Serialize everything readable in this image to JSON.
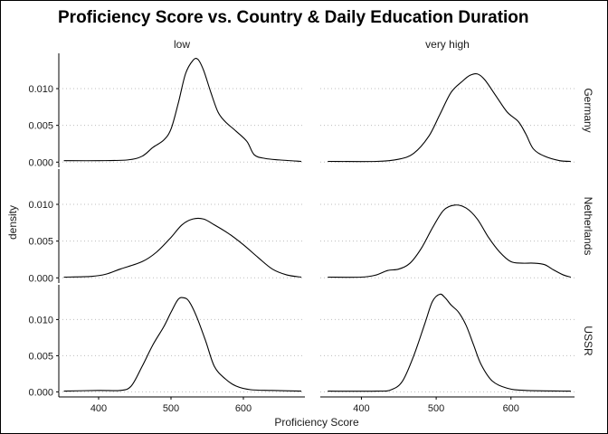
{
  "chart_data": {
    "type": "line",
    "title": "Proficiency Score vs. Country & Daily Education Duration",
    "xlabel": "Proficiency Score",
    "ylabel": "density",
    "xlim": [
      345,
      685
    ],
    "ylim": [
      -0.0007,
      0.0148
    ],
    "x_ticks": [
      400,
      500,
      600
    ],
    "y_ticks": [
      0.0,
      0.005,
      0.01
    ],
    "y_tick_labels": [
      "0.000",
      "0.005",
      "0.010"
    ],
    "grid": "horizontal dotted",
    "col_facets": [
      "low",
      "very high"
    ],
    "row_facets": [
      "Germany",
      "Netherlands",
      "USSR"
    ],
    "panels": [
      {
        "row": "Germany",
        "col": "low",
        "points": [
          [
            352,
            0.0002
          ],
          [
            400,
            0.0002
          ],
          [
            440,
            0.0003
          ],
          [
            460,
            0.0008
          ],
          [
            475,
            0.002
          ],
          [
            490,
            0.003
          ],
          [
            500,
            0.0045
          ],
          [
            510,
            0.008
          ],
          [
            520,
            0.012
          ],
          [
            530,
            0.0138
          ],
          [
            537,
            0.014
          ],
          [
            545,
            0.0125
          ],
          [
            555,
            0.0095
          ],
          [
            565,
            0.0068
          ],
          [
            575,
            0.0055
          ],
          [
            590,
            0.0042
          ],
          [
            605,
            0.0028
          ],
          [
            615,
            0.001
          ],
          [
            630,
            0.0005
          ],
          [
            650,
            0.0003
          ],
          [
            680,
            0.0001
          ]
        ]
      },
      {
        "row": "Germany",
        "col": "very high",
        "points": [
          [
            355,
            0.0001
          ],
          [
            420,
            0.0001
          ],
          [
            450,
            0.0004
          ],
          [
            470,
            0.0012
          ],
          [
            490,
            0.0035
          ],
          [
            505,
            0.0065
          ],
          [
            520,
            0.0095
          ],
          [
            535,
            0.011
          ],
          [
            545,
            0.0118
          ],
          [
            555,
            0.012
          ],
          [
            565,
            0.0112
          ],
          [
            580,
            0.009
          ],
          [
            595,
            0.0068
          ],
          [
            610,
            0.0055
          ],
          [
            620,
            0.0038
          ],
          [
            630,
            0.0018
          ],
          [
            645,
            0.0008
          ],
          [
            665,
            0.0002
          ],
          [
            680,
            0.0001
          ]
        ]
      },
      {
        "row": "Netherlands",
        "col": "low",
        "points": [
          [
            352,
            0.0001
          ],
          [
            390,
            0.0002
          ],
          [
            410,
            0.0005
          ],
          [
            430,
            0.0012
          ],
          [
            460,
            0.0022
          ],
          [
            480,
            0.0035
          ],
          [
            500,
            0.0055
          ],
          [
            515,
            0.0072
          ],
          [
            530,
            0.008
          ],
          [
            545,
            0.008
          ],
          [
            560,
            0.0072
          ],
          [
            580,
            0.006
          ],
          [
            600,
            0.0045
          ],
          [
            620,
            0.0028
          ],
          [
            640,
            0.0012
          ],
          [
            660,
            0.0004
          ],
          [
            680,
            0.0001
          ]
        ]
      },
      {
        "row": "Netherlands",
        "col": "very high",
        "points": [
          [
            355,
            0.0001
          ],
          [
            400,
            0.0001
          ],
          [
            420,
            0.0004
          ],
          [
            435,
            0.001
          ],
          [
            450,
            0.0012
          ],
          [
            465,
            0.002
          ],
          [
            480,
            0.004
          ],
          [
            495,
            0.0068
          ],
          [
            510,
            0.0092
          ],
          [
            525,
            0.0099
          ],
          [
            540,
            0.0095
          ],
          [
            555,
            0.008
          ],
          [
            570,
            0.0055
          ],
          [
            585,
            0.0035
          ],
          [
            600,
            0.0022
          ],
          [
            615,
            0.002
          ],
          [
            630,
            0.002
          ],
          [
            645,
            0.0018
          ],
          [
            655,
            0.0012
          ],
          [
            670,
            0.0004
          ],
          [
            680,
            0.0001
          ]
        ]
      },
      {
        "row": "USSR",
        "col": "low",
        "points": [
          [
            352,
            0.0001
          ],
          [
            400,
            0.0002
          ],
          [
            430,
            0.0002
          ],
          [
            445,
            0.0008
          ],
          [
            460,
            0.0035
          ],
          [
            475,
            0.0065
          ],
          [
            490,
            0.009
          ],
          [
            500,
            0.011
          ],
          [
            510,
            0.0128
          ],
          [
            518,
            0.013
          ],
          [
            525,
            0.0125
          ],
          [
            535,
            0.0105
          ],
          [
            548,
            0.007
          ],
          [
            560,
            0.0035
          ],
          [
            575,
            0.0018
          ],
          [
            590,
            0.0008
          ],
          [
            610,
            0.0003
          ],
          [
            640,
            0.0002
          ],
          [
            680,
            0.0001
          ]
        ]
      },
      {
        "row": "USSR",
        "col": "very high",
        "points": [
          [
            355,
            0.0001
          ],
          [
            420,
            0.0001
          ],
          [
            440,
            0.0003
          ],
          [
            455,
            0.0015
          ],
          [
            470,
            0.005
          ],
          [
            485,
            0.0095
          ],
          [
            495,
            0.0125
          ],
          [
            505,
            0.0135
          ],
          [
            512,
            0.013
          ],
          [
            520,
            0.012
          ],
          [
            530,
            0.011
          ],
          [
            540,
            0.0092
          ],
          [
            550,
            0.0065
          ],
          [
            560,
            0.0038
          ],
          [
            575,
            0.0015
          ],
          [
            595,
            0.0005
          ],
          [
            620,
            0.0002
          ],
          [
            680,
            0.0001
          ]
        ]
      }
    ]
  }
}
